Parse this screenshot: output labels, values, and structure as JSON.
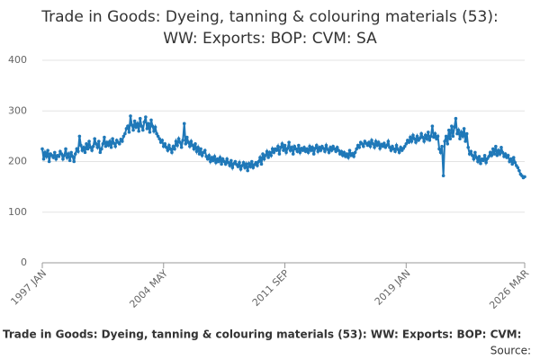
{
  "chart_data": {
    "type": "line",
    "title": [
      "Trade in Goods: Dyeing, tanning & colouring materials (53):",
      "WW: Exports: BOP: CVM: SA"
    ],
    "footer": "Trade in Goods: Dyeing, tanning & colouring materials (53): WW: Exports: BOP: CVM:",
    "source": "Source:",
    "color": "#1f78b8",
    "grid": true,
    "ylim": [
      0,
      400
    ],
    "yticks": [
      0,
      100,
      200,
      300,
      400
    ],
    "categories": [
      "1997 JAN",
      null,
      null,
      null,
      null,
      null,
      null,
      null,
      null,
      null,
      null,
      null,
      null,
      null,
      null,
      null,
      null,
      null,
      null,
      null,
      null,
      null,
      null,
      null,
      null,
      null,
      null,
      null,
      null,
      null,
      null,
      null,
      null,
      null,
      null,
      null,
      null,
      null,
      null,
      null,
      null,
      null,
      null,
      null,
      null,
      null,
      null,
      null,
      null,
      null,
      null,
      null,
      null,
      null,
      null,
      null,
      null,
      null,
      null,
      null,
      null,
      null,
      null,
      null,
      null,
      null,
      null,
      null,
      null,
      null,
      null,
      null,
      null,
      null,
      null,
      null,
      null,
      null,
      null,
      null,
      null,
      null,
      null,
      null,
      null,
      null,
      null,
      null,
      "2004 MAY",
      null,
      null,
      null,
      null,
      null,
      null,
      null,
      null,
      null,
      null,
      null,
      null,
      null,
      null,
      null,
      null,
      null,
      null,
      null,
      null,
      null,
      null,
      null,
      null,
      null,
      null,
      null,
      null,
      null,
      null,
      null,
      null,
      null,
      null,
      null,
      null,
      null,
      null,
      null,
      null,
      null,
      null,
      null,
      null,
      null,
      null,
      null,
      null,
      null,
      null,
      null,
      null,
      null,
      null,
      null,
      null,
      null,
      null,
      null,
      null,
      null,
      null,
      null,
      null,
      null,
      null,
      null,
      null,
      null,
      null,
      null,
      null,
      null,
      null,
      null,
      null,
      null,
      null,
      null,
      null,
      null,
      null,
      null,
      null,
      null,
      null,
      null,
      "2011 SEP",
      null,
      null,
      null,
      null,
      null,
      null,
      null,
      null,
      null,
      null,
      null,
      null,
      null,
      null,
      null,
      null,
      null,
      null,
      null,
      null,
      null,
      null,
      null,
      null,
      null,
      null,
      null,
      null,
      null,
      null,
      null,
      null,
      null,
      null,
      null,
      null,
      null,
      null,
      null,
      null,
      null,
      null,
      null,
      null,
      null,
      null,
      null,
      null,
      null,
      null,
      null,
      null,
      null,
      null,
      null,
      null,
      null,
      null,
      null,
      null,
      null,
      null,
      null,
      null,
      null,
      null,
      null,
      null,
      null,
      null,
      null,
      null,
      null,
      null,
      null,
      null,
      null,
      null,
      null,
      null,
      null,
      null,
      null,
      null,
      null,
      null,
      null,
      "2019 JAN",
      null,
      null,
      null,
      null,
      null,
      null,
      null,
      null,
      null,
      null,
      null,
      null,
      null,
      null,
      null,
      null,
      null,
      null,
      null,
      null,
      null,
      null,
      null,
      null,
      null,
      null,
      null,
      null,
      null,
      null,
      null,
      null,
      null,
      null,
      null,
      null,
      null,
      null,
      null,
      null,
      null,
      null,
      null,
      null,
      null,
      null,
      null,
      null,
      null,
      null,
      null,
      null,
      null,
      null,
      null,
      null,
      null,
      null,
      null,
      null,
      null,
      null,
      null,
      null,
      null,
      null,
      null,
      null,
      null,
      null,
      null,
      null,
      null,
      null,
      null,
      null,
      null,
      null,
      null,
      null,
      null,
      null,
      null,
      null,
      null,
      "2026 MAR"
    ],
    "values": [
      225,
      205,
      218,
      210,
      222,
      200,
      215,
      212,
      208,
      218,
      205,
      212,
      210,
      220,
      215,
      205,
      212,
      225,
      208,
      215,
      202,
      218,
      210,
      200,
      215,
      225,
      220,
      250,
      232,
      222,
      228,
      218,
      235,
      225,
      240,
      228,
      222,
      230,
      245,
      235,
      228,
      240,
      218,
      225,
      235,
      248,
      230,
      238,
      232,
      240,
      228,
      245,
      236,
      230,
      242,
      238,
      235,
      244,
      240,
      250,
      255,
      265,
      270,
      258,
      290,
      272,
      262,
      280,
      268,
      275,
      260,
      285,
      270,
      262,
      278,
      288,
      265,
      275,
      258,
      282,
      270,
      260,
      268,
      255,
      250,
      245,
      238,
      242,
      230,
      235,
      228,
      222,
      232,
      225,
      218,
      230,
      225,
      240,
      232,
      245,
      238,
      228,
      242,
      275,
      235,
      248,
      238,
      230,
      240,
      232,
      225,
      235,
      220,
      228,
      215,
      225,
      212,
      218,
      222,
      210,
      205,
      212,
      200,
      208,
      202,
      210,
      198,
      205,
      200,
      208,
      195,
      205,
      200,
      195,
      205,
      198,
      192,
      202,
      188,
      196,
      200,
      194,
      190,
      198,
      185,
      192,
      198,
      188,
      195,
      182,
      196,
      190,
      200,
      188,
      194,
      198,
      192,
      200,
      208,
      195,
      215,
      205,
      212,
      220,
      208,
      218,
      212,
      225,
      218,
      225,
      222,
      230,
      215,
      228,
      235,
      222,
      232,
      218,
      226,
      238,
      222,
      228,
      215,
      230,
      225,
      220,
      232,
      218,
      226,
      222,
      228,
      220,
      225,
      218,
      230,
      222,
      228,
      215,
      226,
      232,
      220,
      228,
      222,
      230,
      226,
      220,
      232,
      224,
      218,
      228,
      222,
      230,
      225,
      220,
      228,
      222,
      215,
      220,
      212,
      218,
      210,
      215,
      208,
      222,
      212,
      216,
      210,
      218,
      225,
      232,
      228,
      238,
      235,
      230,
      240,
      236,
      232,
      238,
      230,
      242,
      235,
      228,
      240,
      232,
      238,
      226,
      234,
      230,
      236,
      228,
      232,
      240,
      228,
      222,
      230,
      225,
      220,
      232,
      224,
      218,
      228,
      222,
      226,
      230,
      235,
      242,
      238,
      248,
      240,
      252,
      245,
      238,
      250,
      242,
      246,
      255,
      248,
      240,
      252,
      245,
      258,
      242,
      250,
      270,
      248,
      255,
      245,
      250,
      225,
      218,
      230,
      172,
      240,
      250,
      235,
      262,
      245,
      270,
      250,
      268,
      285,
      255,
      262,
      245,
      258,
      250,
      265,
      240,
      255,
      228,
      215,
      220,
      212,
      205,
      218,
      208,
      200,
      210,
      196,
      205,
      202,
      212,
      198,
      206,
      210,
      218,
      212,
      225,
      215,
      230,
      212,
      222,
      215,
      228,
      218,
      210,
      215,
      208,
      212,
      200,
      205,
      195,
      208,
      198,
      192,
      188,
      182,
      175,
      172,
      168,
      170
    ]
  }
}
